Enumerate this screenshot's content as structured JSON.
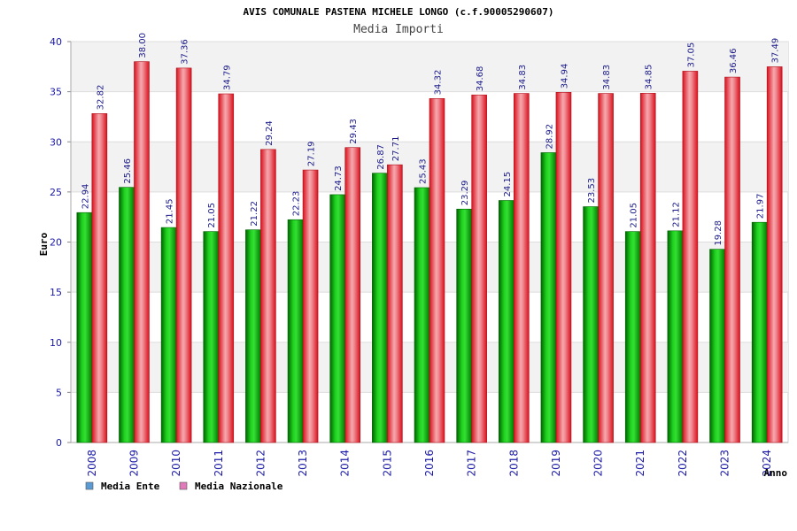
{
  "chart_data": {
    "type": "bar",
    "title": "AVIS COMUNALE PASTENA MICHELE LONGO (c.f.90005290607)",
    "subtitle": "Media Importi",
    "xlabel": "Anno",
    "ylabel": "Euro",
    "ylim": [
      0,
      40
    ],
    "yticks": [
      0,
      5,
      10,
      15,
      20,
      25,
      30,
      35,
      40
    ],
    "categories": [
      "2008",
      "2009",
      "2010",
      "2011",
      "2012",
      "2013",
      "2014",
      "2015",
      "2016",
      "2017",
      "2018",
      "2019",
      "2020",
      "2021",
      "2022",
      "2023",
      "2024"
    ],
    "series": [
      {
        "name": "Media Ente",
        "legend_color": "#5b9bd5",
        "bar_color": "#00a000",
        "labels": [
          "22.94",
          "25.46",
          "21.45",
          "21.05",
          "21.22",
          "22.23",
          "24.73",
          "26.87",
          "25.43",
          "23.29",
          "24.15",
          "28.92",
          "23.53",
          "21.05",
          "21.12",
          "19.28",
          "21.97"
        ],
        "values": [
          22.94,
          25.46,
          21.45,
          21.05,
          21.22,
          22.23,
          24.73,
          26.87,
          25.43,
          23.29,
          24.15,
          28.92,
          23.53,
          21.05,
          21.12,
          19.28,
          21.97
        ]
      },
      {
        "name": "Media Nazionale",
        "legend_color": "#e07ab8",
        "bar_color": "#e8202a",
        "labels": [
          "32.82",
          "38.00",
          "37.36",
          "34.79",
          "29.24",
          "27.19",
          "29.43",
          "27.71",
          "34.32",
          "34.68",
          "34.83",
          "34.94",
          "34.83",
          "34.85",
          "37.05",
          "36.46",
          "37.49"
        ],
        "values": [
          32.82,
          38.0,
          37.36,
          34.79,
          29.24,
          27.19,
          29.43,
          27.71,
          34.32,
          34.68,
          34.83,
          34.94,
          34.83,
          34.85,
          37.05,
          36.46,
          37.49
        ]
      }
    ],
    "grid": true,
    "legend": "bottom-left"
  }
}
